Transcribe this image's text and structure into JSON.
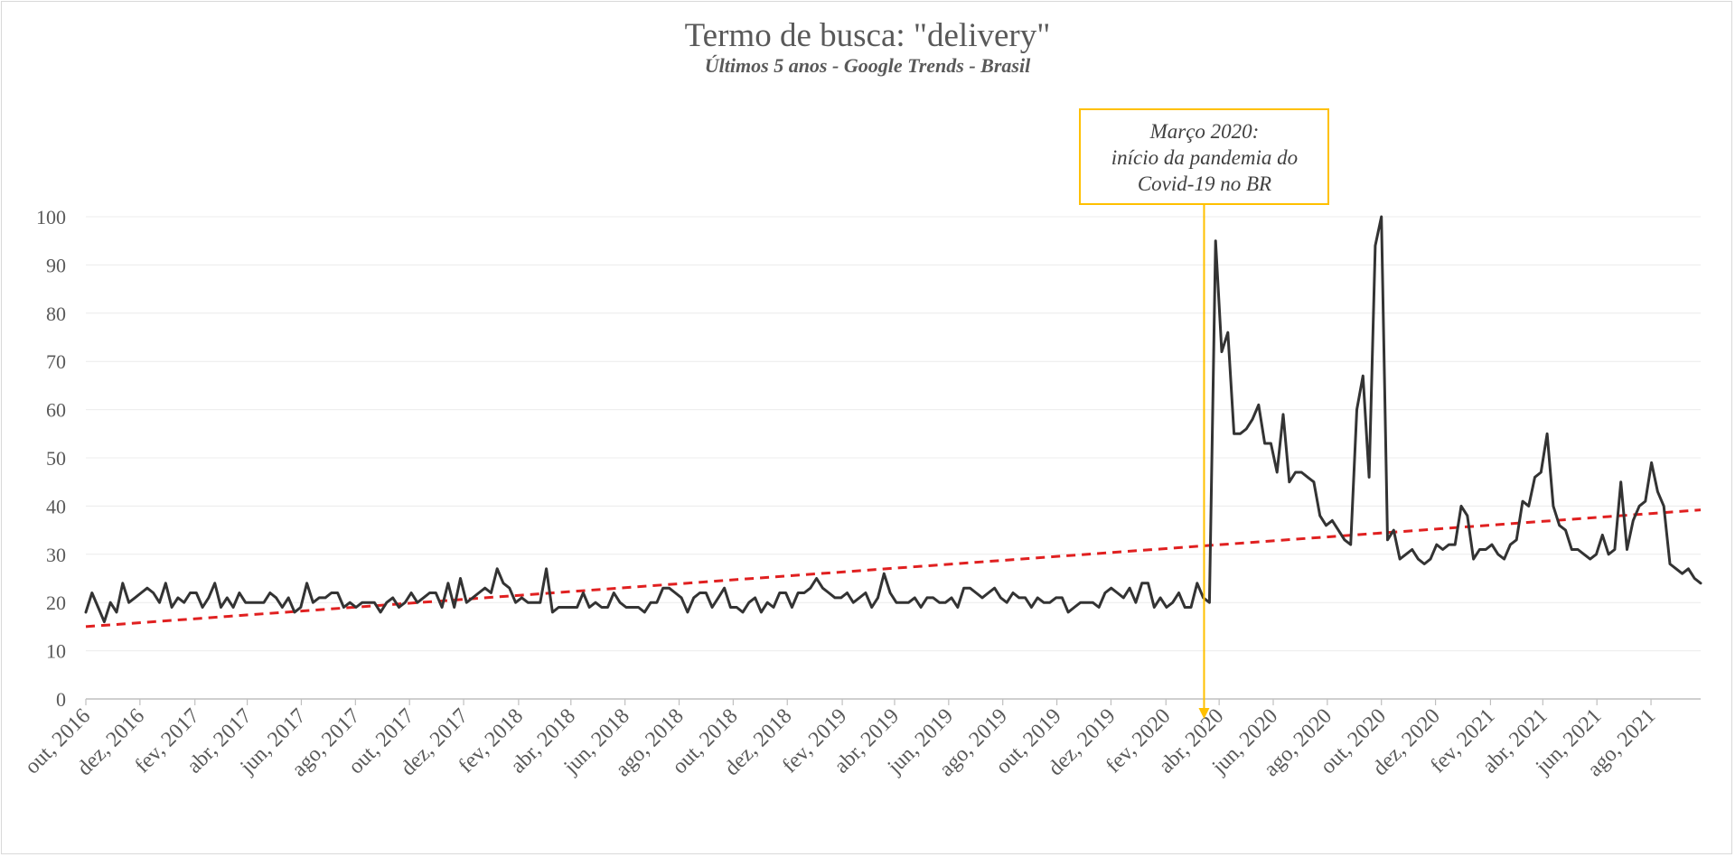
{
  "chart_data": {
    "type": "line",
    "title": "Termo de busca: \"delivery\"",
    "subtitle": "Últimos 5 anos - Google Trends - Brasil",
    "ylim": [
      0,
      100
    ],
    "y_ticks": [
      0,
      10,
      20,
      30,
      40,
      50,
      60,
      70,
      80,
      90,
      100
    ],
    "x_tick_labels": [
      "out, 2016",
      "dez, 2016",
      "fev, 2017",
      "abr, 2017",
      "jun, 2017",
      "ago, 2017",
      "out, 2017",
      "dez, 2017",
      "fev, 2018",
      "abr, 2018",
      "jun, 2018",
      "ago, 2018",
      "out, 2018",
      "dez, 2018",
      "fev, 2019",
      "abr, 2019",
      "jun, 2019",
      "ago, 2019",
      "out, 2019",
      "dez, 2019",
      "fev, 2020",
      "abr, 2020",
      "jun, 2020",
      "ago, 2020",
      "out, 2020",
      "dez, 2020",
      "fev, 2021",
      "abr, 2021",
      "jun, 2021",
      "ago, 2021"
    ],
    "x_start": "2016-10-01",
    "x_end": "2021-09-26",
    "grid": true,
    "series": [
      {
        "color": "#333333",
        "values": [
          18,
          22,
          19,
          16,
          20,
          18,
          24,
          20,
          21,
          22,
          23,
          22,
          20,
          24,
          19,
          21,
          20,
          22,
          22,
          19,
          21,
          24,
          19,
          21,
          19,
          22,
          20,
          20,
          20,
          20,
          22,
          21,
          19,
          21,
          18,
          19,
          24,
          20,
          21,
          21,
          22,
          22,
          19,
          20,
          19,
          20,
          20,
          20,
          18,
          20,
          21,
          19,
          20,
          22,
          20,
          21,
          22,
          22,
          19,
          24,
          19,
          25,
          20,
          21,
          22,
          23,
          22,
          27,
          24,
          23,
          20,
          21,
          20,
          20,
          20,
          27,
          18,
          19,
          19,
          19,
          19,
          22,
          19,
          20,
          19,
          19,
          22,
          20,
          19,
          19,
          19,
          18,
          20,
          20,
          23,
          23,
          22,
          21,
          18,
          21,
          22,
          22,
          19,
          21,
          23,
          19,
          19,
          18,
          20,
          21,
          18,
          20,
          19,
          22,
          22,
          19,
          22,
          22,
          23,
          25,
          23,
          22,
          21,
          21,
          22,
          20,
          21,
          22,
          19,
          21,
          26,
          22,
          20,
          20,
          20,
          21,
          19,
          21,
          21,
          20,
          20,
          21,
          19,
          23,
          23,
          22,
          21,
          22,
          23,
          21,
          20,
          22,
          21,
          21,
          19,
          21,
          20,
          20,
          21,
          21,
          18,
          19,
          20,
          20,
          20,
          19,
          22,
          23,
          22,
          21,
          23,
          20,
          24,
          24,
          19,
          21,
          19,
          20,
          22,
          19,
          19,
          24,
          21,
          20,
          95,
          72,
          76,
          55,
          55,
          56,
          58,
          61,
          53,
          53,
          47,
          59,
          45,
          47,
          47,
          46,
          45,
          38,
          36,
          37,
          35,
          33,
          32,
          60,
          67,
          46,
          94,
          100,
          33,
          35,
          29,
          30,
          31,
          29,
          28,
          29,
          32,
          31,
          32,
          32,
          40,
          38,
          29,
          31,
          31,
          32,
          30,
          29,
          32,
          33,
          41,
          40,
          46,
          47,
          55,
          40,
          36,
          35,
          31,
          31,
          30,
          29,
          30,
          34,
          30,
          31,
          45,
          31,
          37,
          40,
          41,
          49,
          43,
          40,
          28,
          27,
          26,
          27,
          25,
          24
        ]
      }
    ],
    "trendline": {
      "type": "linear",
      "color": "#e02020",
      "start_value": 15,
      "end_value": 39.2
    },
    "annotation": {
      "lines": [
        "Março 2020:",
        "início da pandemia do",
        "Covid-19 no BR"
      ],
      "date": "2020-03-15",
      "border_color": "#ffc000"
    }
  }
}
